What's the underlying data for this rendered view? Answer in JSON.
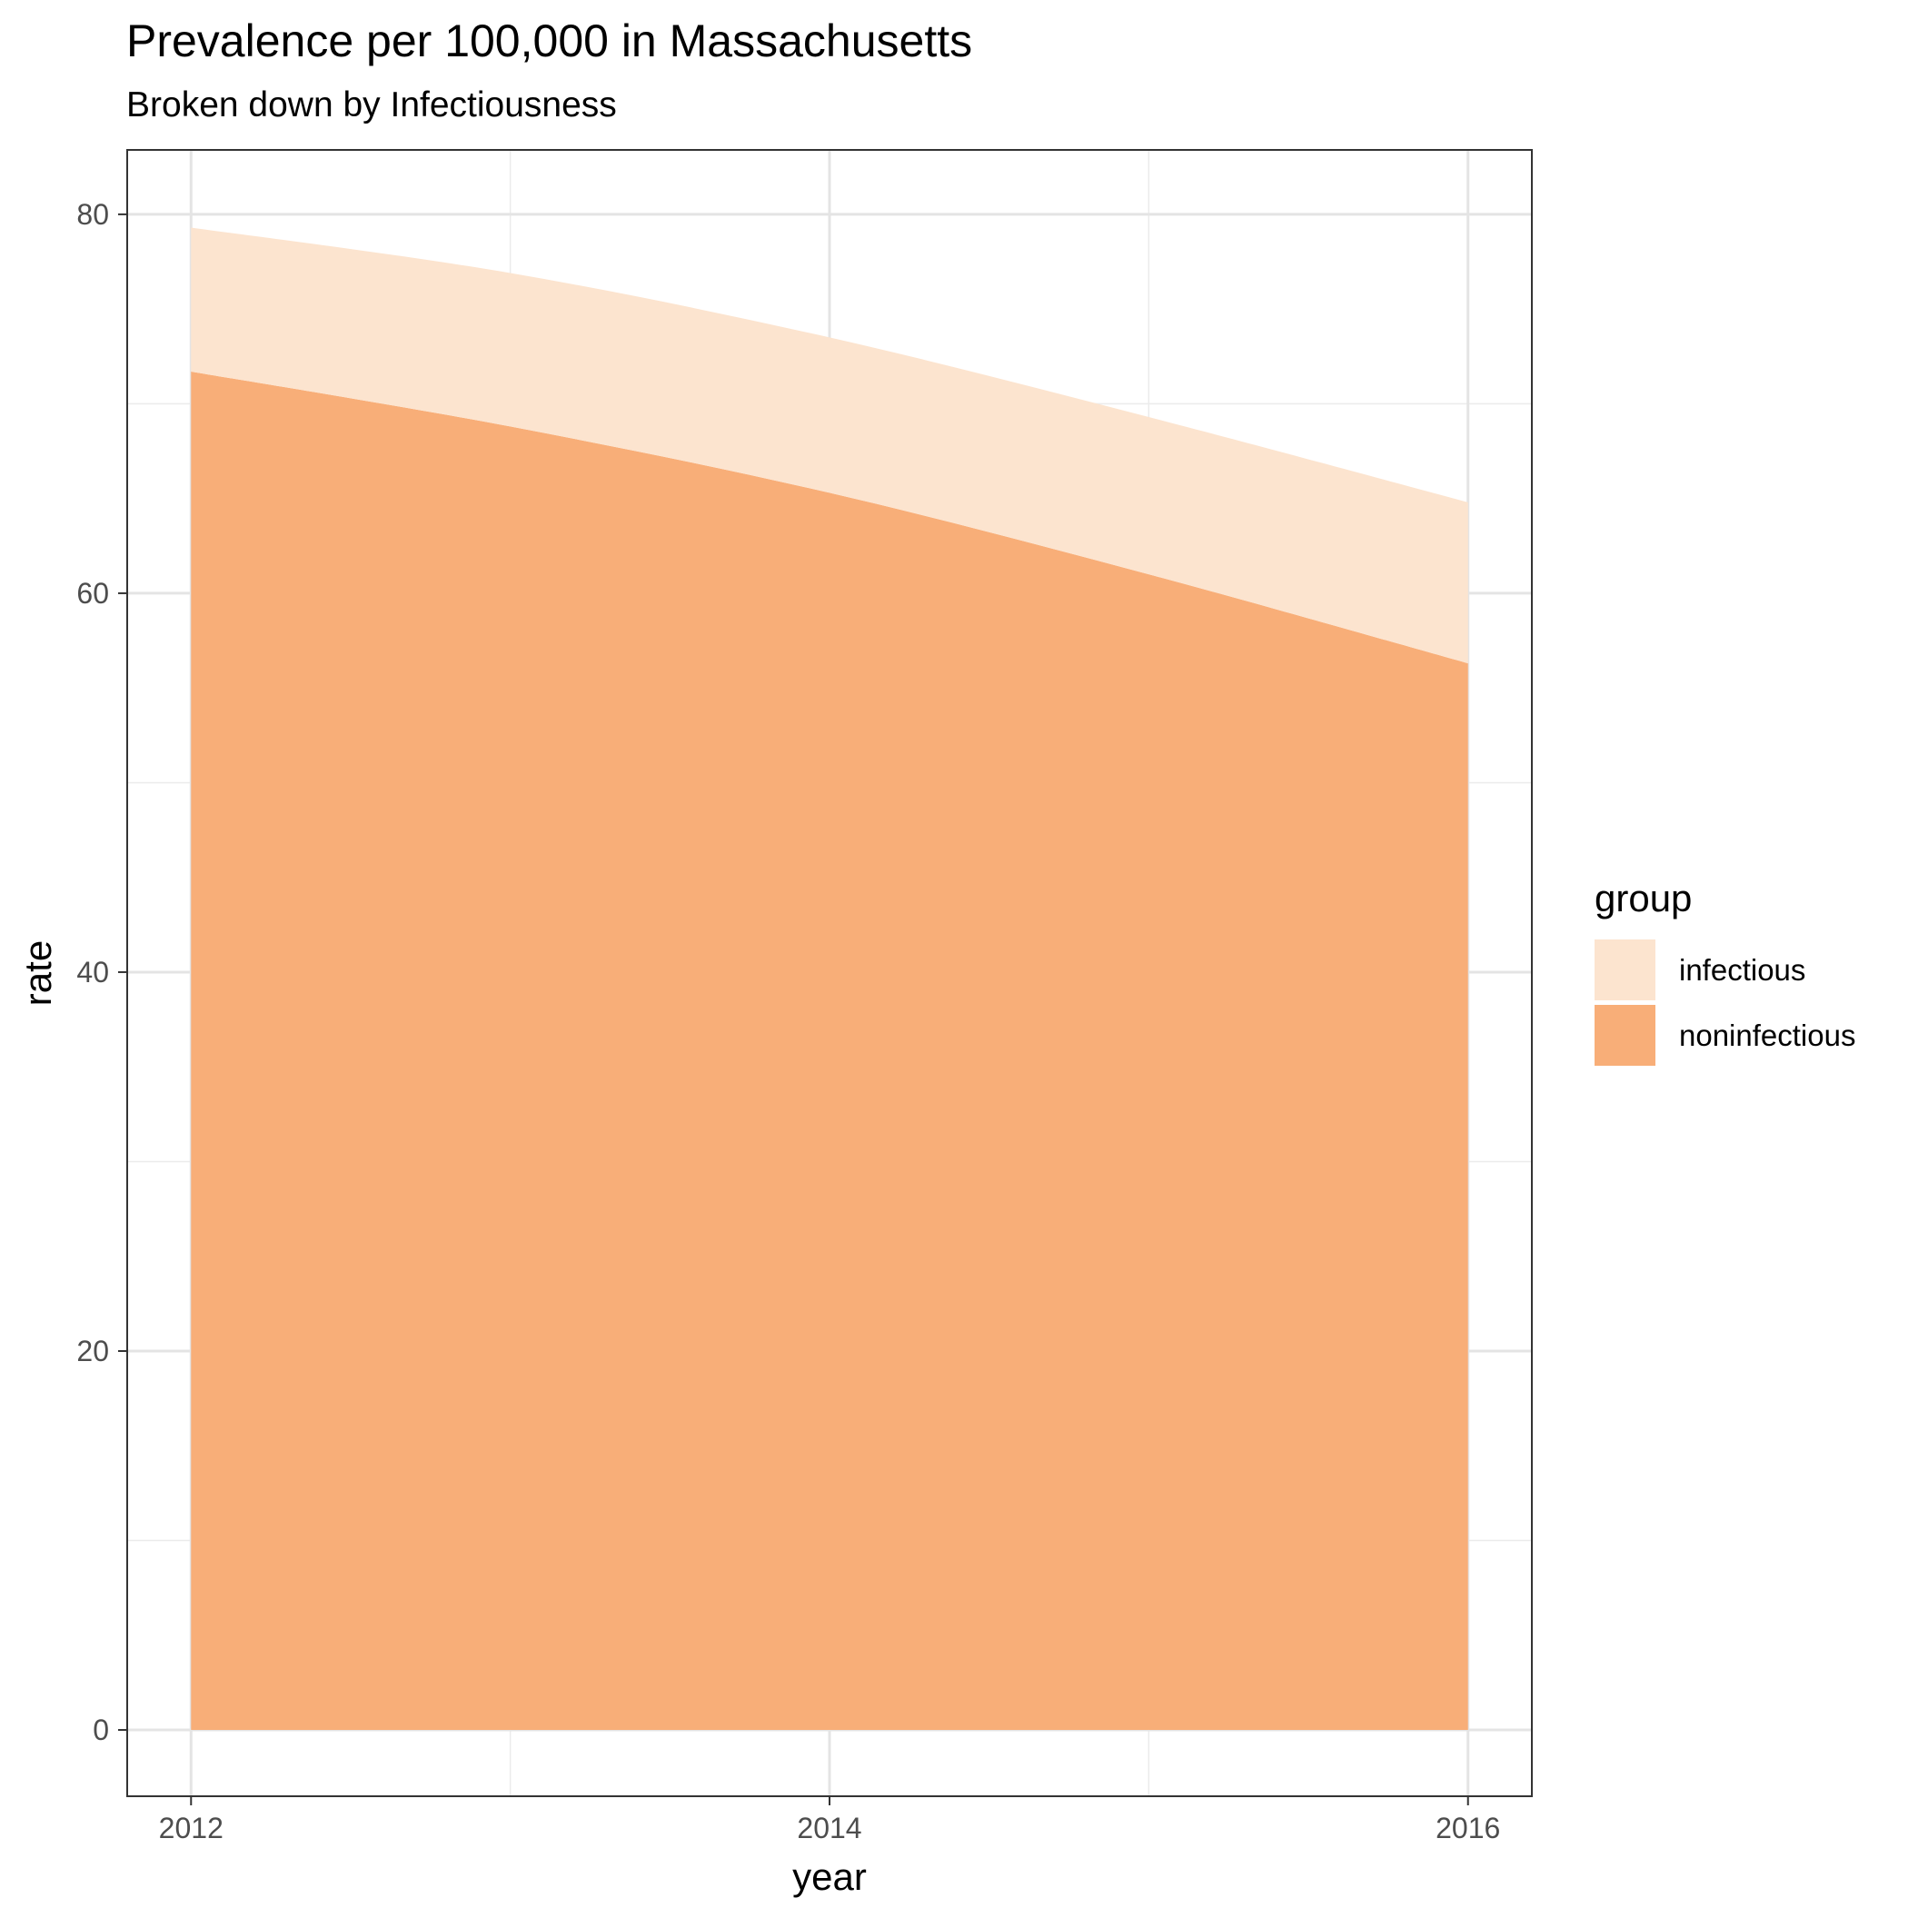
{
  "chart_data": {
    "type": "area",
    "stacked": true,
    "title": "Prevalence per 100,000 in Massachusetts",
    "subtitle": "Broken down by Infectiousness",
    "xlabel": "year",
    "ylabel": "rate",
    "x": [
      2012,
      2013,
      2014,
      2015,
      2016
    ],
    "xticks": [
      2012,
      2014,
      2016
    ],
    "xtick_labels": [
      "2012",
      "2014",
      "2016"
    ],
    "xlim": [
      2011.8,
      2016.2
    ],
    "yticks": [
      0,
      20,
      40,
      60,
      80
    ],
    "ytick_labels": [
      "0",
      "20",
      "40",
      "60",
      "80"
    ],
    "ylim": [
      -3.5,
      83.4
    ],
    "grid": true,
    "series": [
      {
        "name": "noninfectious",
        "values": [
          71.7,
          68.8,
          65.3,
          61.0,
          56.3
        ],
        "color": "#f8ae78"
      },
      {
        "name": "infectious",
        "values": [
          7.6,
          8.1,
          8.2,
          8.3,
          8.5
        ],
        "color": "#fce4cf"
      }
    ],
    "legend": {
      "title": "group",
      "position": "right",
      "entries": [
        "infectious",
        "noninfectious"
      ]
    }
  }
}
